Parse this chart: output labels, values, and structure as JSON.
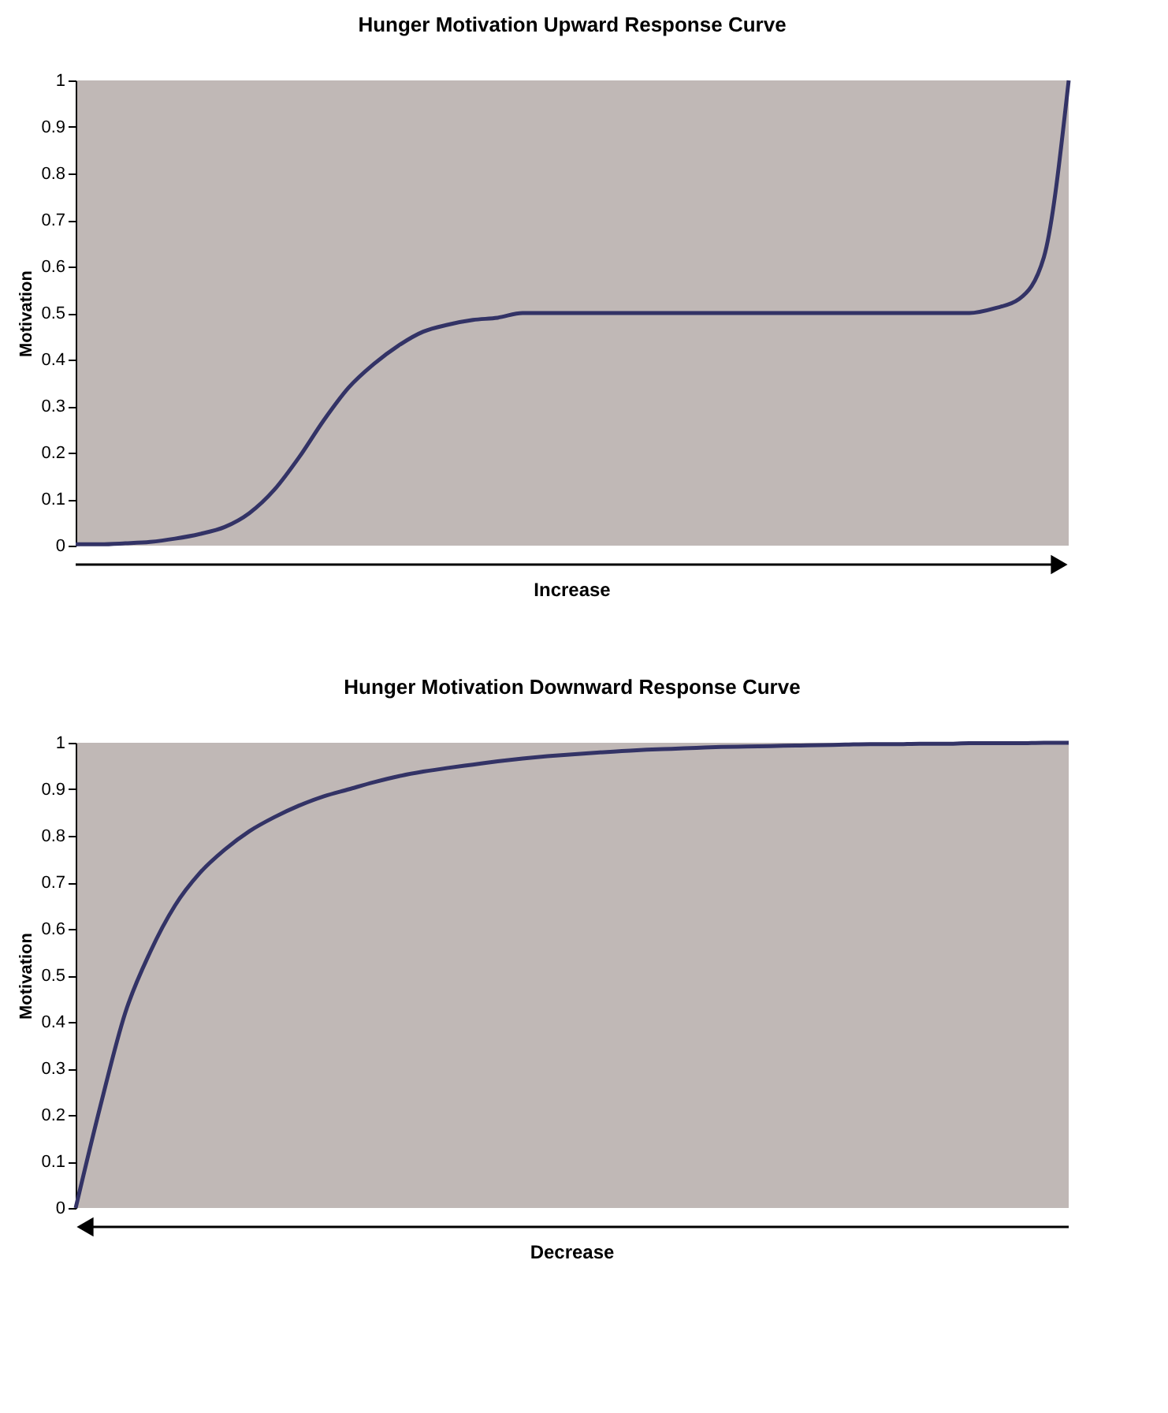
{
  "chart_data": [
    {
      "type": "line",
      "title": "Hunger Motivation Upward Response Curve",
      "xlabel": "Increase",
      "ylabel": "Motivation",
      "tick_labels": "y",
      "grid": false,
      "categories": [
        null,
        null,
        null,
        null,
        null,
        null,
        null,
        null,
        null,
        null,
        null,
        null,
        null,
        null,
        null,
        null,
        null,
        null,
        null,
        null,
        null,
        null,
        null,
        null,
        null,
        null,
        null,
        null,
        null,
        null,
        null,
        null,
        null,
        null,
        null,
        null,
        null,
        null,
        null,
        null,
        null
      ],
      "series": [
        {
          "color": "#333366",
          "values": [
            0.003,
            0.003,
            0.005,
            0.008,
            0.015,
            0.025,
            0.04,
            0.07,
            0.12,
            0.19,
            0.27,
            0.34,
            0.39,
            0.43,
            0.46,
            0.475,
            0.485,
            0.49,
            0.5,
            0.5,
            0.5,
            0.5,
            0.5,
            0.5,
            0.5,
            0.5,
            0.5,
            0.5,
            0.5,
            0.5,
            0.5,
            0.5,
            0.5,
            0.5,
            0.5,
            0.5,
            0.5,
            0.51,
            0.53,
            0.62,
            1.0
          ]
        }
      ],
      "ylim": [
        0,
        1
      ],
      "yticks": [
        0,
        0.1,
        0.2,
        0.3,
        0.4,
        0.5,
        0.6,
        0.7,
        0.8,
        0.9,
        1
      ]
    },
    {
      "type": "line",
      "title": "Hunger Motivation Downward Response Curve",
      "xlabel": "Decrease",
      "ylabel": "Motivation",
      "tick_labels": "y",
      "grid": false,
      "categories": [
        null,
        null,
        null,
        null,
        null,
        null,
        null,
        null,
        null,
        null,
        null,
        null,
        null,
        null,
        null,
        null,
        null,
        null,
        null,
        null,
        null,
        null,
        null,
        null,
        null,
        null,
        null,
        null,
        null,
        null,
        null,
        null,
        null,
        null,
        null,
        null,
        null,
        null,
        null,
        null,
        null
      ],
      "series": [
        {
          "color": "#333366",
          "values": [
            0,
            0.22,
            0.42,
            0.55,
            0.65,
            0.72,
            0.77,
            0.81,
            0.84,
            0.865,
            0.885,
            0.9,
            0.915,
            0.928,
            0.938,
            0.946,
            0.953,
            0.96,
            0.966,
            0.971,
            0.975,
            0.979,
            0.982,
            0.985,
            0.987,
            0.989,
            0.991,
            0.992,
            0.993,
            0.994,
            0.995,
            0.996,
            0.997,
            0.997,
            0.998,
            0.998,
            0.999,
            0.999,
            0.999,
            1.0,
            1.0
          ]
        }
      ],
      "ylim": [
        0,
        1
      ],
      "yticks": [
        0,
        0.1,
        0.2,
        0.3,
        0.4,
        0.5,
        0.6,
        0.7,
        0.8,
        0.9,
        1
      ]
    }
  ]
}
